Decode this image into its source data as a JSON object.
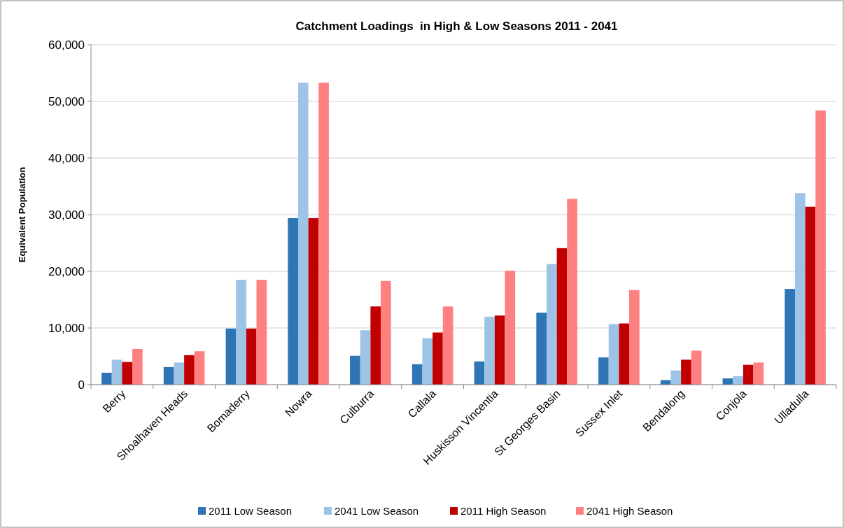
{
  "chart_data": {
    "type": "bar",
    "title": "Catchment Loadings  in High & Low Seasons 2011 - 2041",
    "ylabel": "Equivalent Population",
    "categories": [
      "Berry",
      "Shoalhaven Heads",
      "Bomaderry",
      "Nowra",
      "Culburra",
      "Callala",
      "Huskisson Vincentia",
      "St Georges Basin",
      "Sussex Inlet",
      "Bendalong",
      "Conjola",
      "Ulladulla"
    ],
    "series": [
      {
        "name": "2011 Low Season",
        "color": "#2e75b6",
        "values": [
          2100,
          3100,
          9900,
          29400,
          5100,
          3600,
          4100,
          12700,
          4800,
          800,
          1100,
          16900
        ]
      },
      {
        "name": "2041 Low Season",
        "color": "#9dc3e6",
        "values": [
          4400,
          3900,
          18500,
          53300,
          9600,
          8200,
          12000,
          21300,
          10700,
          2500,
          1500,
          33800
        ]
      },
      {
        "name": "2011 High Season",
        "color": "#c00000",
        "values": [
          4000,
          5200,
          9900,
          29400,
          13800,
          9200,
          12200,
          24100,
          10800,
          4400,
          3500,
          31400
        ]
      },
      {
        "name": "2041 High Season",
        "color": "#ff8080",
        "values": [
          6300,
          5900,
          18500,
          53300,
          18300,
          13800,
          20100,
          32800,
          16700,
          6000,
          3900,
          48400
        ]
      }
    ],
    "ylim": [
      0,
      60000
    ],
    "yticks": [
      {
        "value": 0,
        "label": "0"
      },
      {
        "value": 10000,
        "label": "10,000"
      },
      {
        "value": 20000,
        "label": "20,000"
      },
      {
        "value": 30000,
        "label": "30,000"
      },
      {
        "value": 40000,
        "label": "40,000"
      },
      {
        "value": 50000,
        "label": "50,000"
      },
      {
        "value": 60000,
        "label": "60,000"
      }
    ],
    "grid": "y",
    "legend": "bottom"
  }
}
